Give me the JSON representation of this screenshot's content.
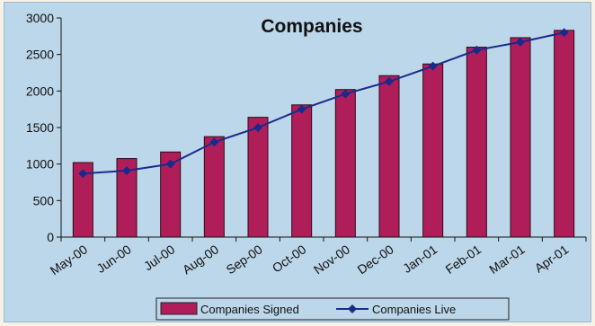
{
  "chart_data": {
    "type": "bar",
    "title": "Companies",
    "categories": [
      "May-00",
      "Jun-00",
      "Jul-00",
      "Aug-00",
      "Sep-00",
      "Oct-00",
      "Nov-00",
      "Dec-00",
      "Jan-01",
      "Feb-01",
      "Mar-01",
      "Apr-01"
    ],
    "series": [
      {
        "name": "Companies Signed",
        "kind": "bar",
        "color": "#b01e5a",
        "values": [
          1020,
          1075,
          1165,
          1375,
          1640,
          1810,
          2020,
          2210,
          2370,
          2600,
          2730,
          2830
        ]
      },
      {
        "name": "Companies Live",
        "kind": "line",
        "color": "#1a2a8c",
        "values": [
          870,
          910,
          1000,
          1300,
          1500,
          1750,
          1960,
          2130,
          2340,
          2560,
          2670,
          2800
        ]
      }
    ],
    "y_ticks": [
      "0",
      "500",
      "1000",
      "1500",
      "2000",
      "2500",
      "3000"
    ],
    "ylim": [
      0,
      3000
    ],
    "xlabel": "",
    "ylabel": "",
    "grid": false,
    "legend_position": "bottom",
    "background_color": "#bcd6ea"
  }
}
